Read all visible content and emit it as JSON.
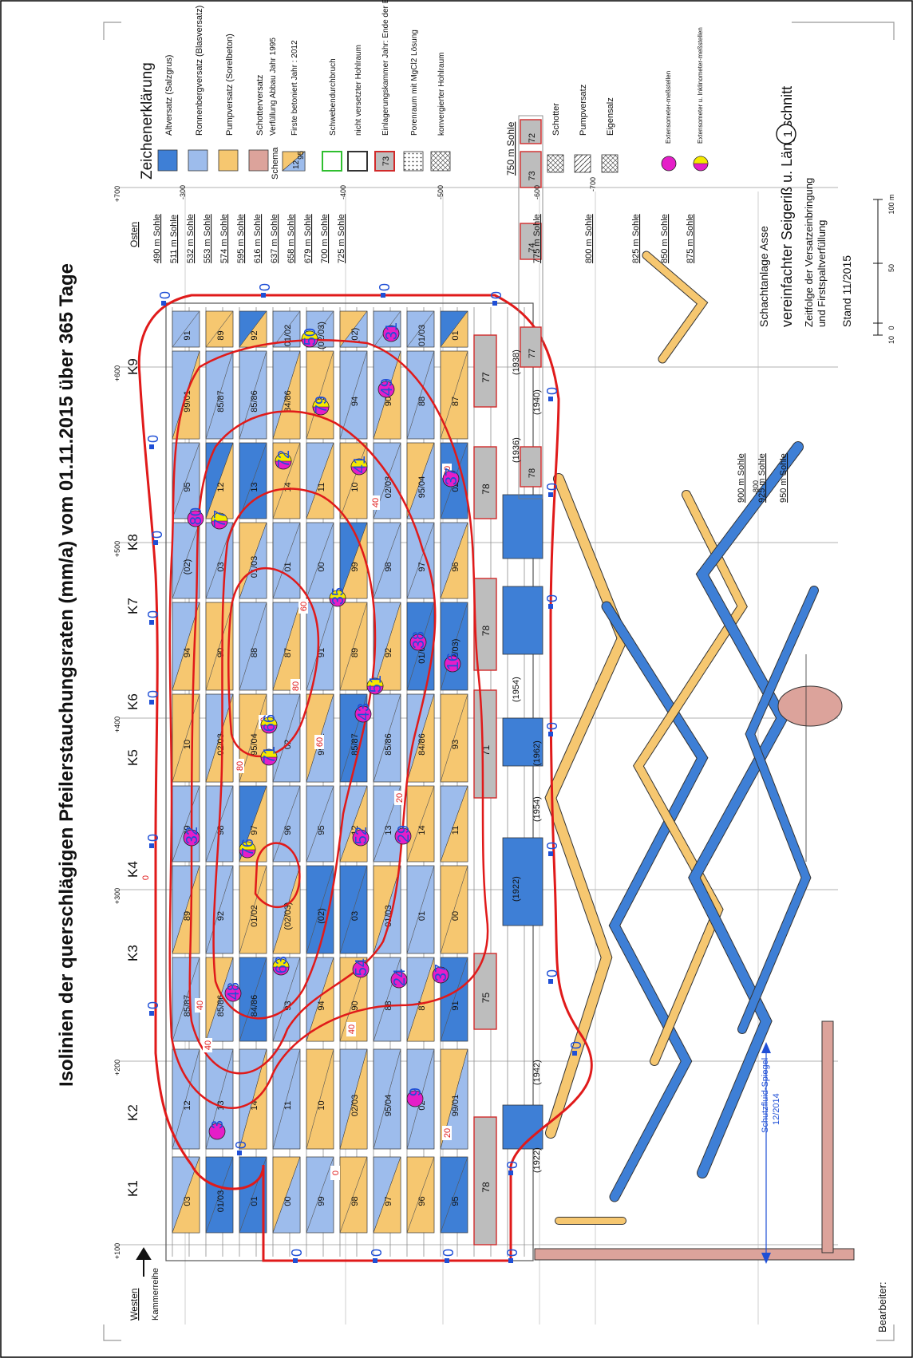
{
  "title": "Isolinien der querschlägigen Pfeilerstauchungsraten (mm/a) vom 01.11.2015 über 365 Tage",
  "legend": {
    "heading": "Zeichenerklärung",
    "items": [
      {
        "label": "Altversatz (Salzgrus)",
        "color": "#3e7fd6"
      },
      {
        "label": "Ronnenbergversatz (Blasversatz)",
        "color": "#9dbcec"
      },
      {
        "label": "Pumpversatz (Sorelbeton)",
        "color": "#f6c770"
      },
      {
        "label": "Schotterversatz",
        "color": "#dca39b"
      }
    ],
    "schema": {
      "label": "Schema",
      "num_a": "12",
      "num_b": "95",
      "fill_note": "Verfüllung Abbau Jahr 1995",
      "roof_note": "Firste betoniert Jahr : 2012"
    },
    "outline_items": [
      {
        "label": "Schwebendurchbruch",
        "stroke": "#2fbf2f",
        "fill": "#ffffff"
      },
      {
        "label": "nicht versetzter Hohlraum",
        "stroke": "#333333",
        "fill": "#ffffff"
      },
      {
        "label": "Einlagerungskammer Jahr: Ende der Einlagerung",
        "stroke": "#d12a2a",
        "fill": "#bdbdbd",
        "num": "73"
      },
      {
        "label": "Porenraum mit MgCl2 Lösung",
        "stroke": "#333333",
        "fill": "#ffffff"
      },
      {
        "label": "konvergierter Hohlraum",
        "stroke": "#333333",
        "fill": "#ffffff"
      }
    ],
    "level_750": "750 m Sohle",
    "chambers": [
      "72",
      "73",
      "74",
      "77",
      "78"
    ],
    "materials": [
      "Schotter",
      "Pumpversatz",
      "Eigensalz"
    ],
    "sensors": [
      "Extensometer-meßstellen",
      "Extensometer u. Inklinometer-meßstellen"
    ]
  },
  "project": {
    "name": "Schachtanlage Asse",
    "section": "vereinfachter Seigeriß u. Längsschnitt",
    "section_no": "1",
    "subtitle_1": "Zeitfolge der Versatzeinbringung",
    "subtitle_2": "und Firstspaltverfüllung",
    "stand": "Stand 11/2015",
    "bearbeiter": "Bearbeiter:"
  },
  "scale": {
    "labels": [
      "10",
      "0",
      "50",
      "100 m"
    ]
  },
  "orientation": {
    "west": "Westen",
    "east": "Osten",
    "direction": "Kammerreihe"
  },
  "levels_right": [
    "490 m Sohle",
    "511 m Sohle",
    "532 m Sohle",
    "553 m Sohle",
    "574 m Sohle",
    "595 m Sohle",
    "616 m Sohle",
    "637 m Sohle",
    "658 m Sohle",
    "679 m Sohle",
    "700 m Sohle",
    "725 m Sohle"
  ],
  "levels_lower": [
    "775 m Sohle",
    "800 m Sohle",
    "825 m Sohle",
    "850 m Sohle",
    "875 m Sohle"
  ],
  "levels_deep": [
    "900 m Sohle",
    "925 m Sohle",
    "950 m Sohle"
  ],
  "depth_marks": [
    "-300",
    "-400",
    "-500",
    "-600",
    "-700",
    "-800"
  ],
  "km_marks": [
    "+100",
    "+200",
    "+300",
    "+400",
    "+500",
    "+600",
    "+700"
  ],
  "columns": [
    "K1",
    "K2",
    "K3",
    "K4",
    "K5",
    "K6",
    "K7",
    "K8",
    "K9"
  ],
  "contour_labels": [
    "0",
    "20",
    "40",
    "60",
    "80"
  ],
  "contour_zero_label": "0",
  "measurement_values": [
    "3",
    "48",
    "63",
    "54",
    "24",
    "37",
    "9",
    "32",
    "76",
    "52",
    "29",
    "71",
    "66",
    "43",
    "51",
    "16",
    "38",
    "35",
    "80",
    "77",
    "72",
    "41",
    "37",
    "79",
    "49",
    "50",
    "31"
  ],
  "schutzfluid": {
    "label": "Schutzfluid-Spiegel",
    "date": "12/2014"
  },
  "lower_years": [
    "(1922)",
    "(1942)",
    "(1954)",
    "(1962)",
    "(1922)",
    "(1954)",
    "(1936)",
    "(1938)",
    "(1940)"
  ],
  "cell_years": [
    "03",
    "01/03",
    "01",
    "00",
    "99",
    "98",
    "97",
    "96",
    "95",
    "12",
    "13",
    "14",
    "11",
    "10",
    "02/03",
    "95/04",
    "02",
    "99/01",
    "85/87",
    "85/86",
    "84/86",
    "93",
    "94",
    "90",
    "88",
    "87",
    "91",
    "89",
    "92",
    "01/02",
    "(02/03)",
    "(02)"
  ]
}
